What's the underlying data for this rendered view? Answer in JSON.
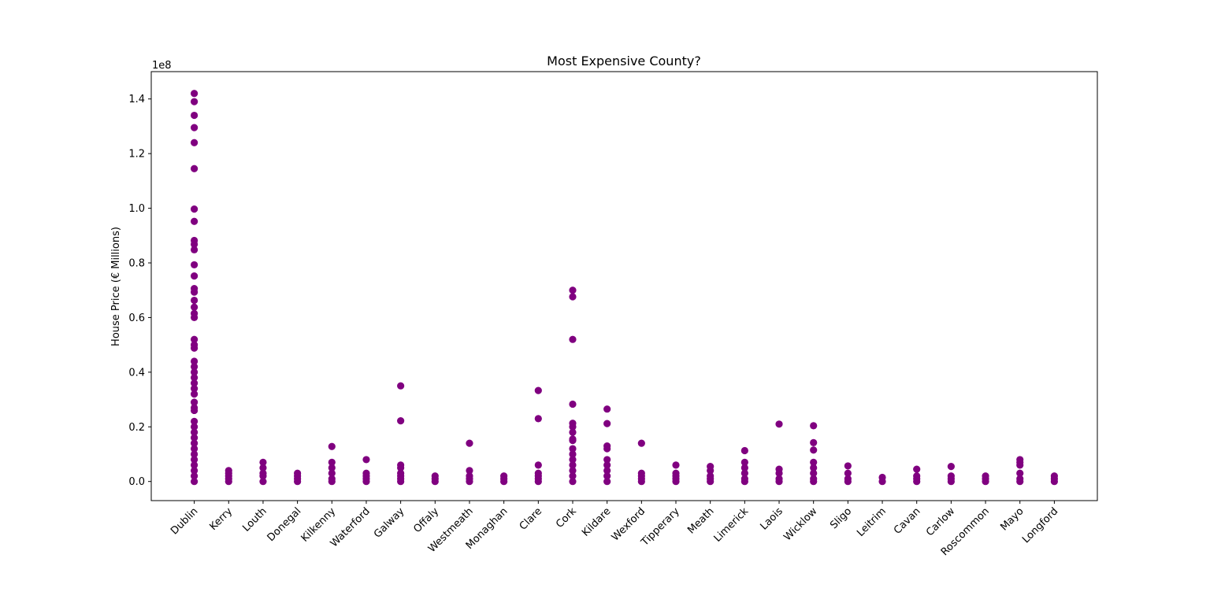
{
  "chart_data": {
    "type": "scatter",
    "title": "Most Expensive County?",
    "xlabel": "",
    "ylabel": "House Price (€ Millions)",
    "y_offset_label": "1e8",
    "y_scale_factor": 100000000,
    "ylim": [
      -0.07,
      1.5
    ],
    "yticks": [
      0.0,
      0.2,
      0.4,
      0.6,
      0.8,
      1.0,
      1.2,
      1.4
    ],
    "ytick_labels": [
      "0.0",
      "0.2",
      "0.4",
      "0.6",
      "0.8",
      "1.0",
      "1.2",
      "1.4"
    ],
    "grid": false,
    "marker_color": "#800080",
    "categories": [
      "Dublin",
      "Kerry",
      "Louth",
      "Donegal",
      "Kilkenny",
      "Waterford",
      "Galway",
      "Offaly",
      "Westmeath",
      "Monaghan",
      "Clare",
      "Cork",
      "Kildare",
      "Wexford",
      "Tipperary",
      "Meath",
      "Limerick",
      "Laois",
      "Wicklow",
      "Sligo",
      "Leitrim",
      "Cavan",
      "Carlow",
      "Roscommon",
      "Mayo",
      "Longford"
    ],
    "points": {
      "Dublin": [
        1.42,
        1.39,
        1.34,
        1.295,
        1.24,
        1.145,
        0.997,
        0.952,
        0.882,
        0.868,
        0.848,
        0.793,
        0.752,
        0.706,
        0.693,
        0.663,
        0.638,
        0.615,
        0.6,
        0.52,
        0.5,
        0.488,
        0.44,
        0.42,
        0.4,
        0.38,
        0.36,
        0.34,
        0.32,
        0.29,
        0.27,
        0.26,
        0.22,
        0.2,
        0.18,
        0.16,
        0.14,
        0.12,
        0.1,
        0.08,
        0.06,
        0.04,
        0.02,
        0.0
      ],
      "Kerry": [
        0.04,
        0.03,
        0.02,
        0.01,
        0.0
      ],
      "Louth": [
        0.07,
        0.05,
        0.03,
        0.02,
        0.0
      ],
      "Donegal": [
        0.03,
        0.02,
        0.01,
        0.0
      ],
      "Kilkenny": [
        0.128,
        0.07,
        0.05,
        0.03,
        0.01,
        0.0
      ],
      "Waterford": [
        0.08,
        0.03,
        0.02,
        0.01,
        0.0
      ],
      "Galway": [
        0.35,
        0.222,
        0.06,
        0.05,
        0.03,
        0.02,
        0.01,
        0.0
      ],
      "Offaly": [
        0.02,
        0.01,
        0.0
      ],
      "Westmeath": [
        0.14,
        0.04,
        0.02,
        0.01,
        0.0
      ],
      "Monaghan": [
        0.02,
        0.01,
        0.0
      ],
      "Clare": [
        0.333,
        0.23,
        0.06,
        0.03,
        0.02,
        0.01,
        0.0
      ],
      "Cork": [
        0.7,
        0.676,
        0.52,
        0.283,
        0.213,
        0.2,
        0.18,
        0.155,
        0.15,
        0.12,
        0.1,
        0.08,
        0.06,
        0.04,
        0.02,
        0.0
      ],
      "Kildare": [
        0.265,
        0.212,
        0.13,
        0.12,
        0.08,
        0.06,
        0.04,
        0.02,
        0.0
      ],
      "Wexford": [
        0.14,
        0.03,
        0.02,
        0.01,
        0.0
      ],
      "Tipperary": [
        0.06,
        0.03,
        0.02,
        0.01,
        0.0
      ],
      "Meath": [
        0.055,
        0.04,
        0.02,
        0.01,
        0.0
      ],
      "Limerick": [
        0.113,
        0.07,
        0.05,
        0.03,
        0.01,
        0.0
      ],
      "Laois": [
        0.21,
        0.045,
        0.03,
        0.01,
        0.0
      ],
      "Wicklow": [
        0.204,
        0.142,
        0.115,
        0.07,
        0.05,
        0.03,
        0.01,
        0.0
      ],
      "Sligo": [
        0.057,
        0.03,
        0.01,
        0.0
      ],
      "Leitrim": [
        0.015,
        0.0
      ],
      "Cavan": [
        0.045,
        0.02,
        0.01,
        0.0
      ],
      "Carlow": [
        0.055,
        0.02,
        0.01,
        0.0
      ],
      "Roscommon": [
        0.02,
        0.01,
        0.0
      ],
      "Mayo": [
        0.08,
        0.07,
        0.06,
        0.03,
        0.01,
        0.0
      ],
      "Longford": [
        0.02,
        0.01,
        0.0
      ]
    }
  }
}
